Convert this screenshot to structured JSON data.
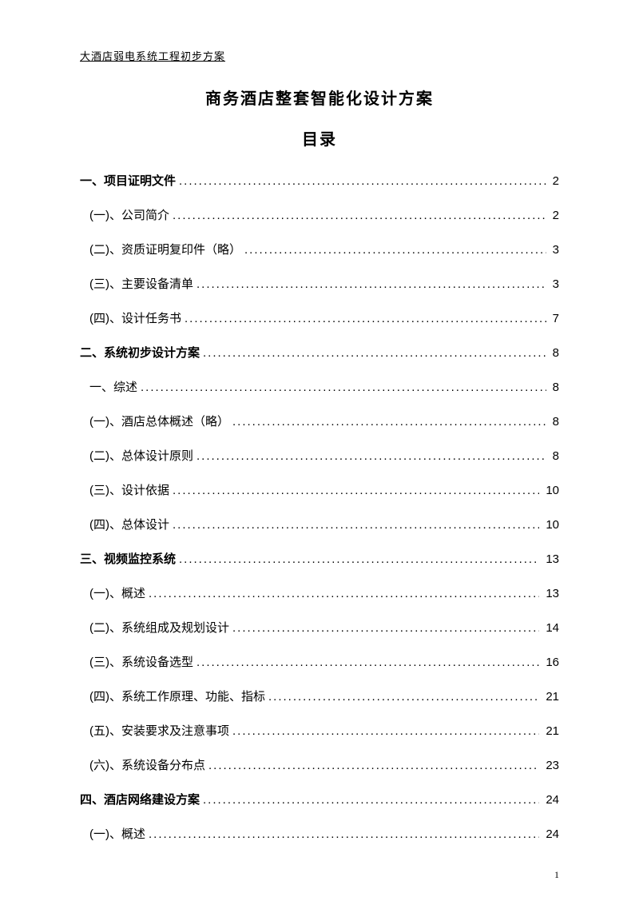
{
  "header": "大酒店弱电系统工程初步方案",
  "title": "商务酒店整套智能化设计方案",
  "subtitle": "目录",
  "toc": [
    {
      "label": "一、项目证明文件",
      "page": "2",
      "bold": true,
      "indent": false
    },
    {
      "label": "(一)、公司简介",
      "page": "2",
      "bold": false,
      "indent": true
    },
    {
      "label": "(二)、资质证明复印件（略）",
      "page": "3",
      "bold": false,
      "indent": true
    },
    {
      "label": "(三)、主要设备清单",
      "page": "3",
      "bold": false,
      "indent": true
    },
    {
      "label": "(四)、设计任务书",
      "page": "7",
      "bold": false,
      "indent": true
    },
    {
      "label": "二、系统初步设计方案",
      "page": "8",
      "bold": true,
      "indent": false
    },
    {
      "label": "一、综述",
      "page": "8",
      "bold": false,
      "indent": true
    },
    {
      "label": "(一)、酒店总体概述（略）",
      "page": "8",
      "bold": false,
      "indent": true
    },
    {
      "label": "(二)、总体设计原则",
      "page": "8",
      "bold": false,
      "indent": true
    },
    {
      "label": "(三)、设计依据",
      "page": "10",
      "bold": false,
      "indent": true
    },
    {
      "label": "(四)、总体设计",
      "page": "10",
      "bold": false,
      "indent": true
    },
    {
      "label": "三、视频监控系统",
      "page": "13",
      "bold": true,
      "indent": false
    },
    {
      "label": "(一)、概述",
      "page": "13",
      "bold": false,
      "indent": true
    },
    {
      "label": "(二)、系统组成及规划设计",
      "page": "14",
      "bold": false,
      "indent": true
    },
    {
      "label": "(三)、系统设备选型",
      "page": "16",
      "bold": false,
      "indent": true
    },
    {
      "label": "(四)、系统工作原理、功能、指标",
      "page": "21",
      "bold": false,
      "indent": true
    },
    {
      "label": "(五)、安装要求及注意事项",
      "page": "21",
      "bold": false,
      "indent": true
    },
    {
      "label": "(六)、系统设备分布点",
      "page": "23",
      "bold": false,
      "indent": true
    },
    {
      "label": "四、酒店网络建设方案",
      "page": "24",
      "bold": true,
      "indent": false
    },
    {
      "label": "(一)、概述",
      "page": "24",
      "bold": false,
      "indent": true
    }
  ],
  "page_number": "1"
}
